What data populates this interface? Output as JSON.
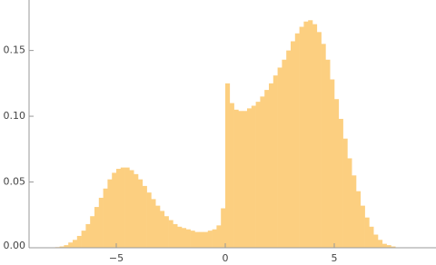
{
  "chart_data": {
    "type": "histogram",
    "color": "#fccf80",
    "bins": [
      -8,
      -7.8,
      -7.6,
      -7.4,
      -7.2,
      -7,
      -6.8,
      -6.6,
      -6.4,
      -6.2,
      -6,
      -5.8,
      -5.6,
      -5.4,
      -5.2,
      -5,
      -4.8,
      -4.6,
      -4.4,
      -4.2,
      -4,
      -3.8,
      -3.6,
      -3.4,
      -3.2,
      -3,
      -2.8,
      -2.6,
      -2.4,
      -2.2,
      -2,
      -1.8,
      -1.6,
      -1.4,
      -1.2,
      -1,
      -0.8,
      -0.6,
      -0.4,
      -0.2,
      0,
      0.2,
      0.4,
      0.6,
      0.8,
      1,
      1.2,
      1.4,
      1.6,
      1.8,
      2,
      2.2,
      2.4,
      2.6,
      2.8,
      3,
      3.2,
      3.4,
      3.6,
      3.8,
      4,
      4.2,
      4.4,
      4.6,
      4.8,
      5,
      5.2,
      5.4,
      5.6,
      5.8,
      6,
      6.2,
      6.4,
      6.6,
      6.8,
      7,
      7.2,
      7.4,
      7.6,
      7.8,
      8
    ],
    "values": [
      0,
      0.0005,
      0.001,
      0.002,
      0.004,
      0.006,
      0.009,
      0.013,
      0.018,
      0.024,
      0.031,
      0.038,
      0.045,
      0.052,
      0.057,
      0.06,
      0.061,
      0.061,
      0.059,
      0.056,
      0.052,
      0.047,
      0.042,
      0.037,
      0.032,
      0.028,
      0.024,
      0.021,
      0.018,
      0.016,
      0.015,
      0.014,
      0.013,
      0.012,
      0.012,
      0.012,
      0.013,
      0.014,
      0.017,
      0.03,
      0.125,
      0.11,
      0.105,
      0.104,
      0.104,
      0.106,
      0.108,
      0.111,
      0.115,
      0.12,
      0.125,
      0.131,
      0.137,
      0.143,
      0.15,
      0.157,
      0.163,
      0.168,
      0.172,
      0.173,
      0.17,
      0.164,
      0.155,
      0.143,
      0.128,
      0.113,
      0.098,
      0.083,
      0.068,
      0.055,
      0.043,
      0.032,
      0.023,
      0.016,
      0.01,
      0.006,
      0.003,
      0.002,
      0.001,
      0
    ],
    "xlim": [
      -9,
      9.6
    ],
    "ylim": [
      0,
      0.187
    ],
    "xticks": [
      {
        "value": -5,
        "label": "−5"
      },
      0,
      5
    ],
    "yticks": [
      {
        "value": 0,
        "label": "0.00"
      },
      {
        "value": 0.05,
        "label": "0.05"
      },
      {
        "value": 0.1,
        "label": "0.10"
      },
      {
        "value": 0.15,
        "label": "0.15"
      }
    ]
  }
}
